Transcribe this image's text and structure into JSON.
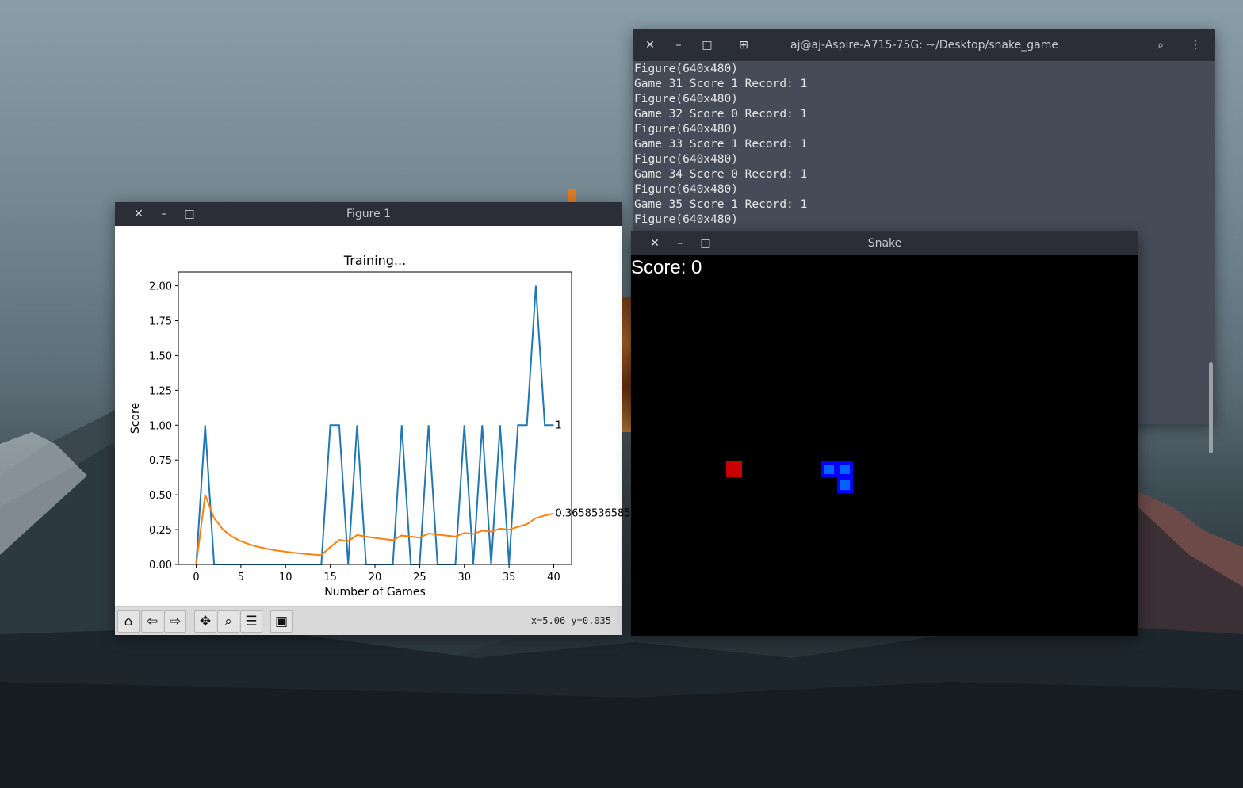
{
  "terminal": {
    "title": "aj@aj-Aspire-A715-75G: ~/Desktop/snake_game",
    "lines": [
      "Figure(640x480)",
      "Game 31 Score 1 Record: 1",
      "Figure(640x480)",
      "Game 32 Score 0 Record: 1",
      "Figure(640x480)",
      "Game 33 Score 1 Record: 1",
      "Figure(640x480)",
      "Game 34 Score 0 Record: 1",
      "Figure(640x480)",
      "Game 35 Score 1 Record: 1",
      "Figure(640x480)"
    ]
  },
  "figure": {
    "title": "Figure 1",
    "coord_readout": "x=5.06 y=0.035"
  },
  "snake": {
    "title": "Snake",
    "score_text": "Score: 0",
    "food": {
      "col": 6,
      "row": 13
    },
    "body": [
      {
        "col": 12,
        "row": 13
      },
      {
        "col": 13,
        "row": 13
      },
      {
        "col": 13,
        "row": 14
      }
    ]
  },
  "chart_data": {
    "type": "line",
    "title": "Training...",
    "xlabel": "Number of Games",
    "ylabel": "Score",
    "xlim": [
      -2,
      42
    ],
    "ylim": [
      0,
      2.1
    ],
    "xticks": [
      0,
      5,
      10,
      15,
      20,
      25,
      30,
      35,
      40
    ],
    "yticks": [
      0.0,
      0.25,
      0.5,
      0.75,
      1.0,
      1.25,
      1.5,
      1.75,
      2.0
    ],
    "ytick_labels": [
      "0.00",
      "0.25",
      "0.50",
      "0.75",
      "1.00",
      "1.25",
      "1.50",
      "1.75",
      "2.00"
    ],
    "series": [
      {
        "color": "#1f77b4",
        "values": [
          0,
          1,
          0,
          0,
          0,
          0,
          0,
          0,
          0,
          0,
          0,
          0,
          0,
          0,
          0,
          1,
          1,
          0,
          1,
          0,
          0,
          0,
          0,
          1,
          0,
          0,
          1,
          0,
          0,
          0,
          1,
          0,
          1,
          0,
          1,
          0,
          1,
          1,
          2,
          1,
          1
        ],
        "end_label": "1"
      },
      {
        "color": "#ff7f0e",
        "values": [
          0,
          0.5,
          0.333,
          0.25,
          0.2,
          0.167,
          0.143,
          0.125,
          0.111,
          0.1,
          0.091,
          0.083,
          0.077,
          0.071,
          0.067,
          0.125,
          0.176,
          0.167,
          0.211,
          0.2,
          0.19,
          0.182,
          0.174,
          0.208,
          0.2,
          0.192,
          0.222,
          0.214,
          0.207,
          0.2,
          0.226,
          0.219,
          0.242,
          0.235,
          0.257,
          0.25,
          0.27,
          0.289,
          0.333,
          0.351,
          0.366
        ],
        "end_label": "0.3658536585"
      }
    ]
  }
}
